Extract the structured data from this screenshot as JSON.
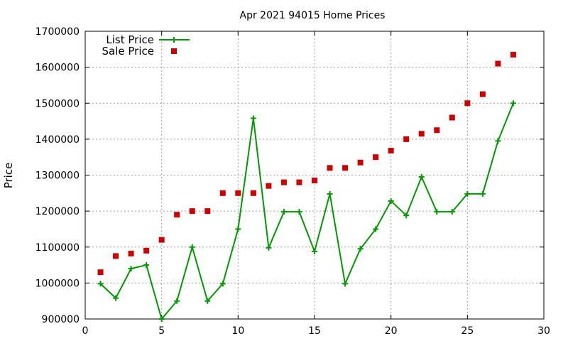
{
  "chart_data": {
    "type": "line",
    "title": "Apr 2021 94015 Home Prices",
    "xlabel": "",
    "ylabel": "Price",
    "xlim": [
      0,
      30
    ],
    "ylim": [
      900000,
      1700000
    ],
    "x_ticks": [
      0,
      5,
      10,
      15,
      20,
      25,
      30
    ],
    "y_ticks": [
      900000,
      1000000,
      1100000,
      1200000,
      1300000,
      1400000,
      1500000,
      1600000,
      1700000
    ],
    "grid": true,
    "legend_position": "top-left",
    "x": [
      1,
      2,
      3,
      4,
      5,
      6,
      7,
      8,
      9,
      10,
      11,
      12,
      13,
      14,
      15,
      16,
      17,
      18,
      19,
      20,
      21,
      22,
      23,
      24,
      25,
      26,
      27,
      28
    ],
    "series": [
      {
        "name": "List Price",
        "style": "line-points",
        "marker": "plus",
        "color": "#009900",
        "values": [
          998000,
          958000,
          1040000,
          1050000,
          900000,
          950000,
          1100000,
          950000,
          998000,
          1150000,
          1458000,
          1098000,
          1198000,
          1198000,
          1088000,
          1248000,
          998000,
          1095000,
          1150000,
          1228000,
          1188000,
          1295000,
          1198000,
          1198000,
          1248000,
          1248000,
          1395000,
          1500000
        ]
      },
      {
        "name": "Sale Price",
        "style": "points",
        "marker": "square",
        "color": "#cc0000",
        "values": [
          1030000,
          1075000,
          1082000,
          1090000,
          1120000,
          1190000,
          1200000,
          1200000,
          1250000,
          1250000,
          1250000,
          1270000,
          1280000,
          1280000,
          1285000,
          1320000,
          1320000,
          1335000,
          1350000,
          1368000,
          1400000,
          1415000,
          1425000,
          1460000,
          1500000,
          1525000,
          1610000,
          1635000
        ]
      }
    ]
  }
}
